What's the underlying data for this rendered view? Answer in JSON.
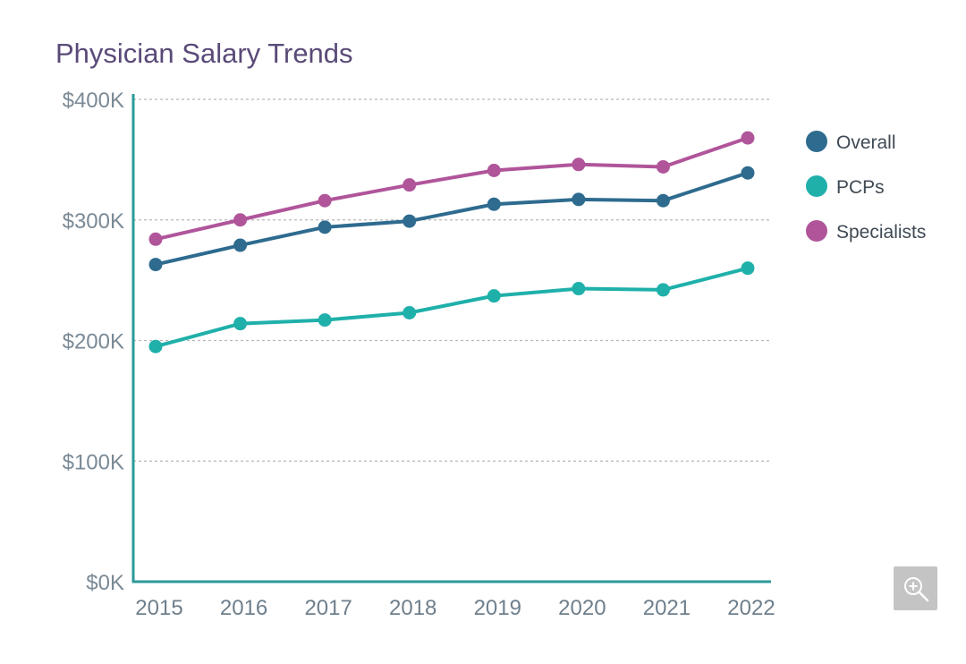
{
  "chart_data": {
    "type": "line",
    "title": "Physician Salary Trends",
    "categories": [
      "2015",
      "2016",
      "2017",
      "2018",
      "2019",
      "2020",
      "2021",
      "2022"
    ],
    "y_ticks": [
      "$0K",
      "$100K",
      "$200K",
      "$300K",
      "$400K"
    ],
    "ylim": [
      0,
      400000
    ],
    "grid": true,
    "legend_position": "right",
    "series": [
      {
        "name": "Overall",
        "color": "#2e6b8f",
        "values": [
          263000,
          279000,
          294000,
          299000,
          313000,
          317000,
          316000,
          339000
        ]
      },
      {
        "name": "PCPs",
        "color": "#1fb0aa",
        "values": [
          195000,
          214000,
          217000,
          223000,
          237000,
          243000,
          242000,
          260000
        ]
      },
      {
        "name": "Specialists",
        "color": "#b0559a",
        "values": [
          284000,
          300000,
          316000,
          329000,
          341000,
          346000,
          344000,
          368000
        ]
      }
    ],
    "axis_color": "#2c9a9a"
  },
  "controls": {
    "zoom_icon": "zoom-in-icon"
  }
}
